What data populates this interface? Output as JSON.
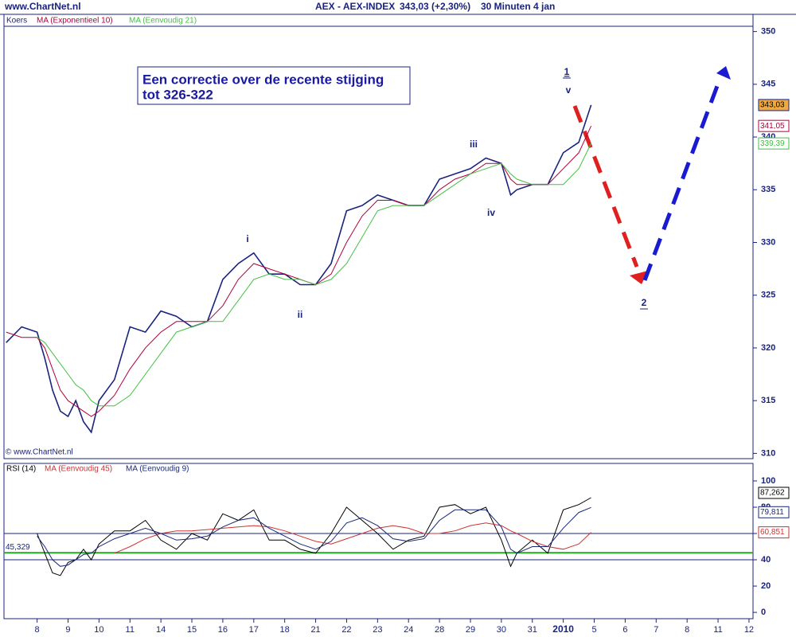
{
  "header": {
    "site": "www.ChartNet.nl",
    "instrument": "AEX - AEX-INDEX",
    "quote": "343,03 (+2,30%)",
    "period": "30 Minuten  4 jan"
  },
  "annotations": {
    "box": [
      "Een correctie over de recente stijging",
      "tot 326-322"
    ],
    "waves": [
      "1",
      "v",
      "iii",
      "iv",
      "i",
      "ii",
      "2"
    ],
    "copyright": "© www.ChartNet.nl"
  },
  "chart_data": [
    {
      "type": "line",
      "xlim": [
        -1.07,
        23.13
      ],
      "ylim": [
        309.5,
        350.5
      ],
      "yticks": [
        310,
        315,
        320,
        325,
        330,
        335,
        340,
        345,
        350
      ],
      "x": [
        -1,
        -0.5,
        0,
        0.25,
        0.5,
        0.75,
        1,
        1.25,
        1.5,
        1.75,
        2,
        2.5,
        3,
        3.5,
        4,
        4.5,
        5,
        5.5,
        6,
        6.5,
        7,
        7.5,
        8,
        8.5,
        9,
        9.5,
        10,
        10.5,
        11,
        11.5,
        12,
        12.5,
        13,
        13.5,
        14,
        14.5,
        15,
        15.3,
        15.5,
        16,
        16.5,
        17,
        17.5,
        17.9
      ],
      "series": [
        {
          "name": "Koers",
          "color": "#1a237e",
          "last_label": "343,03",
          "values": [
            320.5,
            322,
            321.5,
            319,
            316,
            314,
            313.5,
            315,
            313,
            312,
            315,
            317,
            322,
            321.5,
            323.5,
            323,
            322,
            322.5,
            326.5,
            328,
            329,
            327,
            327,
            326,
            326,
            328,
            333,
            333.5,
            334.5,
            334,
            333.5,
            333.5,
            336,
            336.5,
            337,
            338,
            337.5,
            334.5,
            335,
            335.5,
            335.5,
            338.5,
            339.5,
            343.03
          ]
        },
        {
          "name": "MA (Exponentieel 10)",
          "color": "#b0003a",
          "last_label": "341,05",
          "values": [
            321.5,
            321,
            321,
            320,
            318,
            316,
            315,
            314.5,
            314,
            313.5,
            314,
            315.5,
            318,
            320,
            321.5,
            322.5,
            322.5,
            322.5,
            324,
            326.5,
            328,
            327.5,
            327,
            326.5,
            326,
            327,
            330,
            332.5,
            334,
            334,
            333.5,
            333.5,
            335,
            336,
            336.5,
            337.5,
            337.5,
            336,
            335.5,
            335.5,
            335.5,
            337,
            338.5,
            341.05
          ]
        },
        {
          "name": "MA (Eenvoudig 21)",
          "color": "#44c044",
          "last_label": "339,39",
          "values": [
            null,
            null,
            321,
            320.5,
            319.5,
            318.5,
            317.5,
            316.5,
            316,
            315,
            314.5,
            314.5,
            315.5,
            317.5,
            319.5,
            321.5,
            322,
            322.5,
            322.5,
            324.5,
            326.5,
            327,
            326.5,
            326.5,
            326,
            326.5,
            328,
            330.5,
            333,
            333.5,
            333.5,
            333.5,
            334.5,
            335.5,
            336.5,
            337,
            337.5,
            336.5,
            336,
            335.5,
            335.5,
            335.5,
            337,
            339.39
          ]
        }
      ]
    },
    {
      "type": "line",
      "xlim": [
        -1.07,
        23.13
      ],
      "ylim": [
        -4.8,
        112.7
      ],
      "yticks": [
        0,
        20,
        40,
        60,
        80,
        100
      ],
      "hlines": [
        60,
        40
      ],
      "reference": {
        "value": 45.329,
        "label": "45,329",
        "color": "#22aa22"
      },
      "xticks": [
        {
          "value": 0,
          "label": "8"
        },
        {
          "value": 1,
          "label": "9"
        },
        {
          "value": 2,
          "label": "10"
        },
        {
          "value": 3,
          "label": "11"
        },
        {
          "value": 4,
          "label": "14"
        },
        {
          "value": 5,
          "label": "15"
        },
        {
          "value": 6,
          "label": "16"
        },
        {
          "value": 7,
          "label": "17"
        },
        {
          "value": 8,
          "label": "18"
        },
        {
          "value": 9,
          "label": "21"
        },
        {
          "value": 10,
          "label": "22"
        },
        {
          "value": 11,
          "label": "23"
        },
        {
          "value": 12,
          "label": "24"
        },
        {
          "value": 13,
          "label": "28"
        },
        {
          "value": 14,
          "label": "29"
        },
        {
          "value": 15,
          "label": "30"
        },
        {
          "value": 16,
          "label": "31"
        },
        {
          "value": 17,
          "label": "2010"
        },
        {
          "value": 18,
          "label": "5"
        },
        {
          "value": 19,
          "label": "6"
        },
        {
          "value": 20,
          "label": "7"
        },
        {
          "value": 21,
          "label": "8"
        },
        {
          "value": 22,
          "label": "11"
        },
        {
          "value": 23,
          "label": "12"
        }
      ],
      "x": [
        -1,
        -0.5,
        0,
        0.25,
        0.5,
        0.75,
        1,
        1.25,
        1.5,
        1.75,
        2,
        2.5,
        3,
        3.5,
        4,
        4.5,
        5,
        5.5,
        6,
        6.5,
        7,
        7.5,
        8,
        8.5,
        9,
        9.5,
        10,
        10.5,
        11,
        11.5,
        12,
        12.5,
        13,
        13.5,
        14,
        14.5,
        15,
        15.3,
        15.5,
        16,
        16.5,
        17,
        17.5,
        17.9
      ],
      "series": [
        {
          "name": "RSI (14)",
          "color": "#000000",
          "last_label": "87,262",
          "values": [
            null,
            null,
            60,
            45,
            30,
            28,
            38,
            40,
            48,
            40,
            52,
            62,
            62,
            70,
            55,
            48,
            60,
            55,
            75,
            70,
            78,
            55,
            55,
            48,
            45,
            60,
            80,
            70,
            60,
            48,
            55,
            58,
            80,
            82,
            75,
            80,
            55,
            35,
            45,
            55,
            45,
            78,
            82,
            87.262
          ]
        },
        {
          "name": "MA (Eenvoudig 45)",
          "color": "#cc3333",
          "last_label": "60,851",
          "values": [
            null,
            null,
            null,
            null,
            null,
            null,
            null,
            null,
            null,
            null,
            null,
            45,
            50,
            56,
            60,
            62,
            62,
            63,
            64,
            65,
            66,
            65,
            62,
            58,
            54,
            52,
            56,
            60,
            64,
            66,
            64,
            60,
            60,
            62,
            66,
            68,
            66,
            62,
            60,
            54,
            50,
            48,
            52,
            60.851
          ]
        },
        {
          "name": "MA (Eenvoudig 9)",
          "color": "#1a2a7a",
          "last_label": "79,811",
          "values": [
            null,
            null,
            58,
            50,
            40,
            35,
            36,
            40,
            44,
            45,
            50,
            56,
            60,
            64,
            60,
            55,
            56,
            58,
            65,
            70,
            72,
            64,
            58,
            52,
            48,
            54,
            68,
            72,
            66,
            56,
            54,
            56,
            70,
            78,
            78,
            78,
            65,
            48,
            45,
            50,
            50,
            64,
            76,
            79.811
          ]
        }
      ]
    }
  ]
}
